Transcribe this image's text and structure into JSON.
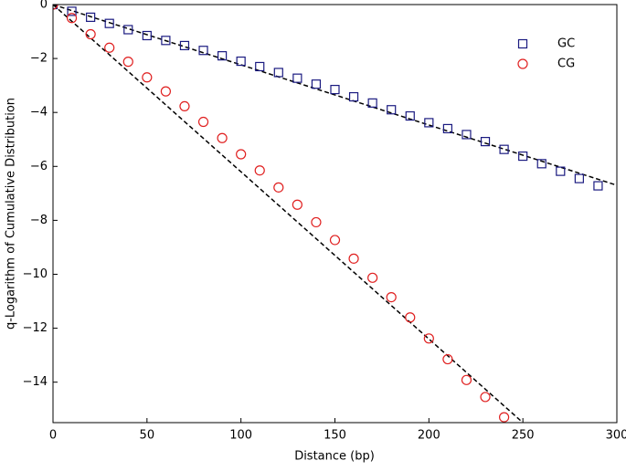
{
  "chart_data": {
    "type": "scatter",
    "xlabel": "Distance (bp)",
    "ylabel": "q-Logarithm of Cumulative Distribution",
    "xlim": [
      0,
      300
    ],
    "ylim": [
      -15.5,
      0
    ],
    "xticks": [
      0,
      50,
      100,
      150,
      200,
      250,
      300
    ],
    "yticks": [
      0,
      {
        "value": -2,
        "label": "−2"
      },
      {
        "value": -4,
        "label": "−4"
      },
      {
        "value": -6,
        "label": "−6"
      },
      {
        "value": -8,
        "label": "−8"
      },
      {
        "value": -10,
        "label": "−10"
      },
      {
        "value": -12,
        "label": "−12"
      },
      {
        "value": -14,
        "label": "−14"
      }
    ],
    "legend": "upper right",
    "series": [
      {
        "name": "GC",
        "color": "#1a1a80",
        "marker": "square",
        "x": [
          0,
          10,
          20,
          30,
          40,
          50,
          60,
          70,
          80,
          90,
          100,
          110,
          120,
          130,
          140,
          150,
          160,
          170,
          180,
          190,
          200,
          210,
          220,
          230,
          240,
          250,
          260,
          270,
          280,
          290
        ],
        "values": [
          0,
          -0.25,
          -0.47,
          -0.7,
          -0.93,
          -1.15,
          -1.33,
          -1.52,
          -1.7,
          -1.9,
          -2.1,
          -2.3,
          -2.52,
          -2.73,
          -2.95,
          -3.15,
          -3.42,
          -3.65,
          -3.9,
          -4.13,
          -4.38,
          -4.6,
          -4.82,
          -5.08,
          -5.37,
          -5.62,
          -5.9,
          -6.18,
          -6.45,
          -6.72
        ],
        "fit": {
          "x": [
            0,
            300
          ],
          "values": [
            0,
            -6.7
          ]
        }
      },
      {
        "name": "CG",
        "color": "#e02020",
        "marker": "circle",
        "x": [
          0,
          10,
          20,
          30,
          40,
          50,
          60,
          70,
          80,
          90,
          100,
          110,
          120,
          130,
          140,
          150,
          160,
          170,
          180,
          190,
          200,
          210,
          220,
          230,
          240
        ],
        "values": [
          0,
          -0.5,
          -1.1,
          -1.6,
          -2.12,
          -2.7,
          -3.22,
          -3.77,
          -4.35,
          -4.95,
          -5.55,
          -6.15,
          -6.78,
          -7.42,
          -8.07,
          -8.73,
          -9.42,
          -10.13,
          -10.85,
          -11.6,
          -12.38,
          -13.15,
          -13.92,
          -14.55,
          -15.3
        ],
        "fit": {
          "x": [
            0,
            250
          ],
          "values": [
            0,
            -15.5
          ]
        }
      }
    ]
  }
}
